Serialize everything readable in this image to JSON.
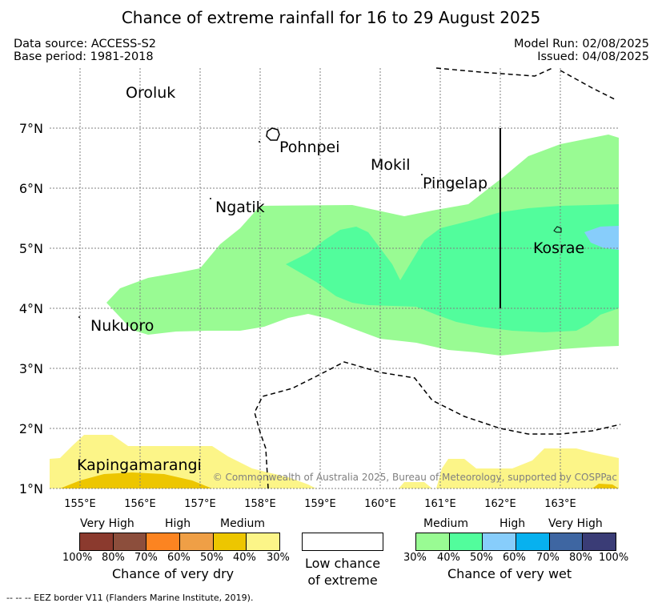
{
  "title": "Chance of extreme rainfall for 16 to 29 August 2025",
  "data_source": "Data source: ACCESS-S2",
  "base_period": "Base period: 1981-2018",
  "model_run": "Model Run: 02/08/2025",
  "issued": "Issued: 04/08/2025",
  "map": {
    "lon_labels": [
      "155°E",
      "156°E",
      "157°E",
      "158°E",
      "159°E",
      "160°E",
      "161°E",
      "162°E",
      "163°E"
    ],
    "lat_labels": [
      "7°N",
      "6°N",
      "5°N",
      "4°N",
      "3°N",
      "2°N",
      "1°N"
    ],
    "places": [
      "Oroluk",
      "Pohnpei",
      "Mokil",
      "Pingelap",
      "Ngatik",
      "Kosrae",
      "Nukuoro",
      "Kapingamarangi"
    ],
    "copyright": "© Commonwealth of Australia 2025, Bureau of Meteorology, supported by COSPPac"
  },
  "legend": {
    "dry": {
      "headers": [
        "Very High",
        "High",
        "Medium"
      ],
      "ticks": [
        "100%",
        "80%",
        "70%",
        "60%",
        "50%",
        "40%",
        "30%"
      ],
      "colors": [
        "#8b3a2e",
        "#8c4e3c",
        "#fc8421",
        "#ef9f46",
        "#edc600",
        "#fcf588"
      ],
      "caption": "Chance of very dry"
    },
    "low": {
      "line1": "Low chance",
      "line2": "of extreme"
    },
    "wet": {
      "headers": [
        "Medium",
        "High",
        "Very High"
      ],
      "ticks": [
        "30%",
        "40%",
        "50%",
        "60%",
        "70%",
        "80%",
        "100%"
      ],
      "colors": [
        "#99fb93",
        "#52fd9c",
        "#87cdfb",
        "#07b1ef",
        "#3e66a2",
        "#3a3c76"
      ],
      "caption": "Chance of very wet"
    }
  },
  "footnote": "--  --  -- EEZ border V11 (Flanders Marine Institute, 2019)."
}
